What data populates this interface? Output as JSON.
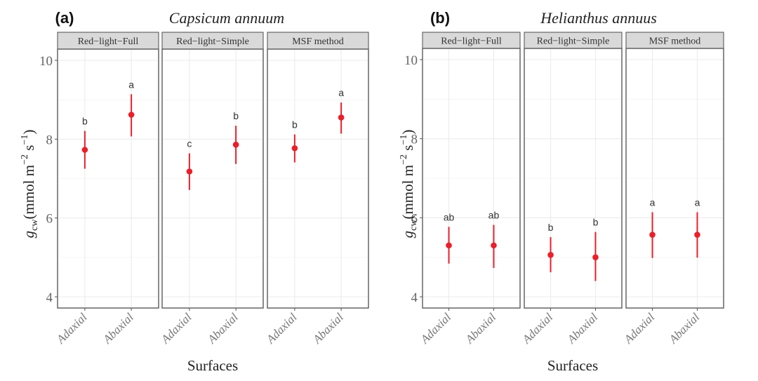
{
  "chart_data": [
    {
      "type": "scatter",
      "panel_tag": "(a)",
      "title": "Capsicum annuum",
      "xlabel": "Surfaces",
      "ylabel": {
        "symbol": "g",
        "subscript": "cw",
        "units_prefix": "(mmol  m",
        "exp1": "−2",
        "units_mid": " s",
        "exp2": "−1",
        "units_suffix": ")"
      },
      "ylim": [
        3.75,
        10.3
      ],
      "yticks": [
        4,
        6,
        8,
        10
      ],
      "grid": true,
      "point_color": "#e8202a",
      "categories": [
        "Adaxial",
        "Abaxial"
      ],
      "facets": [
        {
          "name": "Red−light−Full",
          "points": [
            {
              "x": "Adaxial",
              "y": 7.73,
              "lower": 7.25,
              "upper": 8.21,
              "label": "b"
            },
            {
              "x": "Abaxial",
              "y": 8.62,
              "lower": 8.07,
              "upper": 9.14,
              "label": "a"
            }
          ]
        },
        {
          "name": "Red−light−Simple",
          "points": [
            {
              "x": "Adaxial",
              "y": 7.18,
              "lower": 6.71,
              "upper": 7.64,
              "label": "c"
            },
            {
              "x": "Abaxial",
              "y": 7.86,
              "lower": 7.37,
              "upper": 8.34,
              "label": "b"
            }
          ]
        },
        {
          "name": "MSF method",
          "points": [
            {
              "x": "Adaxial",
              "y": 7.77,
              "lower": 7.41,
              "upper": 8.12,
              "label": "b"
            },
            {
              "x": "Abaxial",
              "y": 8.55,
              "lower": 8.14,
              "upper": 8.93,
              "label": "a"
            }
          ]
        }
      ]
    },
    {
      "type": "scatter",
      "panel_tag": "(b)",
      "title": "Helianthus annuus",
      "xlabel": "Surfaces",
      "ylabel": {
        "symbol": "g",
        "subscript": "cw",
        "units_prefix": "(mmol  m",
        "exp1": "−2",
        "units_mid": " s",
        "exp2": "−1",
        "units_suffix": ")"
      },
      "ylim": [
        3.75,
        10.3
      ],
      "yticks": [
        4,
        6,
        8,
        10
      ],
      "grid": true,
      "point_color": "#e8202a",
      "categories": [
        "Adaxial",
        "Abaxial"
      ],
      "facets": [
        {
          "name": "Red−light−Full",
          "points": [
            {
              "x": "Adaxial",
              "y": 5.3,
              "lower": 4.84,
              "upper": 5.77,
              "label": "ab"
            },
            {
              "x": "Abaxial",
              "y": 5.3,
              "lower": 4.73,
              "upper": 5.82,
              "label": "ab"
            }
          ]
        },
        {
          "name": "Red−light−Simple",
          "points": [
            {
              "x": "Adaxial",
              "y": 5.06,
              "lower": 4.62,
              "upper": 5.51,
              "label": "b"
            },
            {
              "x": "Abaxial",
              "y": 5.0,
              "lower": 4.4,
              "upper": 5.64,
              "label": "b"
            }
          ]
        },
        {
          "name": "MSF method",
          "points": [
            {
              "x": "Adaxial",
              "y": 5.57,
              "lower": 4.98,
              "upper": 6.14,
              "label": "a"
            },
            {
              "x": "Abaxial",
              "y": 5.57,
              "lower": 4.99,
              "upper": 6.14,
              "label": "a"
            }
          ]
        }
      ]
    }
  ]
}
